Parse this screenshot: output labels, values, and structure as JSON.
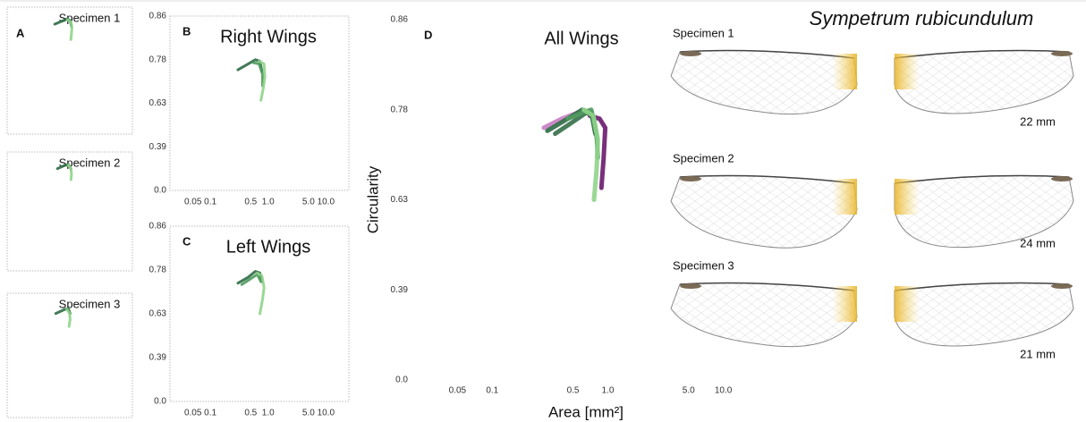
{
  "chart_data": [
    {
      "type": "line",
      "title": "Specimen 1",
      "panel": "A",
      "log_x": true,
      "frame": true,
      "xlim": [
        0.02,
        25
      ],
      "ylim": [
        0,
        0.86
      ],
      "series": [
        {
          "color": "#2e6b45",
          "x": [
            0.3,
            0.45,
            0.6,
            0.72,
            0.78
          ],
          "values": [
            0.745,
            0.765,
            0.78,
            0.77,
            0.73
          ]
        },
        {
          "color": "#8fd48a",
          "x": [
            0.62,
            0.75,
            0.8,
            0.78,
            0.75
          ],
          "values": [
            0.775,
            0.76,
            0.72,
            0.68,
            0.64
          ]
        }
      ]
    },
    {
      "type": "line",
      "title": "Specimen 2",
      "log_x": true,
      "frame": true,
      "xlim": [
        0.02,
        25
      ],
      "ylim": [
        0,
        0.86
      ],
      "series": [
        {
          "color": "#2e6b45",
          "x": [
            0.35,
            0.5,
            0.65,
            0.75
          ],
          "values": [
            0.74,
            0.76,
            0.77,
            0.74
          ]
        },
        {
          "color": "#8fd48a",
          "x": [
            0.65,
            0.75,
            0.78,
            0.76
          ],
          "values": [
            0.765,
            0.74,
            0.7,
            0.66
          ]
        }
      ]
    },
    {
      "type": "line",
      "title": "Specimen 3",
      "log_x": true,
      "frame": true,
      "xlim": [
        0.02,
        25
      ],
      "ylim": [
        0,
        0.86
      ],
      "series": [
        {
          "color": "#2e6b45",
          "x": [
            0.32,
            0.5,
            0.65,
            0.72
          ],
          "values": [
            0.72,
            0.745,
            0.755,
            0.72
          ]
        },
        {
          "color": "#8fd48a",
          "x": [
            0.6,
            0.7,
            0.72,
            0.68
          ],
          "values": [
            0.75,
            0.72,
            0.68,
            0.63
          ]
        }
      ]
    },
    {
      "type": "line",
      "title": "Right Wings",
      "panel": "B",
      "log_x": true,
      "frame": true,
      "xlim": [
        0.02,
        25
      ],
      "ylim": [
        0,
        0.86
      ],
      "xticks": [
        0.05,
        0.1,
        0.5,
        {
          "value": 1,
          "label": "1.0"
        },
        {
          "value": 5,
          "label": "5.0"
        },
        {
          "value": 10,
          "label": "10.0"
        }
      ],
      "yticks": [
        {
          "value": 0,
          "label": "0.0"
        },
        0.39,
        0.63,
        0.78,
        0.86
      ],
      "series": [
        {
          "color": "#2e6b45",
          "x": [
            0.3,
            0.45,
            0.6,
            0.72,
            0.78
          ],
          "values": [
            0.745,
            0.765,
            0.78,
            0.775,
            0.74
          ]
        },
        {
          "color": "#4f9a5e",
          "x": [
            0.55,
            0.7,
            0.8,
            0.8
          ],
          "values": [
            0.77,
            0.765,
            0.73,
            0.69
          ]
        },
        {
          "color": "#8fd48a",
          "x": [
            0.7,
            0.85,
            0.88,
            0.82,
            0.75
          ],
          "values": [
            0.775,
            0.765,
            0.72,
            0.68,
            0.64
          ]
        }
      ]
    },
    {
      "type": "line",
      "title": "Left Wings",
      "panel": "C",
      "log_x": true,
      "frame": true,
      "xlim": [
        0.02,
        25
      ],
      "ylim": [
        0,
        0.86
      ],
      "xticks": [
        0.05,
        0.1,
        0.5,
        {
          "value": 1,
          "label": "1.0"
        },
        {
          "value": 5,
          "label": "5.0"
        },
        {
          "value": 10,
          "label": "10.0"
        }
      ],
      "yticks": [
        {
          "value": 0,
          "label": "0.0"
        },
        0.39,
        0.63,
        0.78,
        0.86
      ],
      "series": [
        {
          "color": "#2e6b45",
          "x": [
            0.3,
            0.45,
            0.6,
            0.72,
            0.78
          ],
          "values": [
            0.735,
            0.755,
            0.775,
            0.77,
            0.74
          ]
        },
        {
          "color": "#4f9a5e",
          "x": [
            0.35,
            0.5,
            0.65,
            0.75
          ],
          "values": [
            0.73,
            0.75,
            0.765,
            0.74
          ]
        },
        {
          "color": "#8fd48a",
          "x": [
            0.65,
            0.78,
            0.85,
            0.8,
            0.72
          ],
          "values": [
            0.77,
            0.76,
            0.72,
            0.68,
            0.63
          ]
        }
      ]
    },
    {
      "type": "line",
      "title": "All Wings",
      "panel": "D",
      "log_x": true,
      "frame": false,
      "xlim": [
        0.02,
        25
      ],
      "ylim": [
        0,
        0.86
      ],
      "x_label": "Area [mm²]",
      "y_label": "Circularity",
      "xticks": [
        0.05,
        0.1,
        0.5,
        {
          "value": 1,
          "label": "1.0"
        },
        {
          "value": 5,
          "label": "5.0"
        },
        {
          "value": 10,
          "label": "10.0"
        }
      ],
      "yticks": [
        {
          "value": 0,
          "label": "0.0"
        },
        0.39,
        0.63,
        0.78,
        0.86
      ],
      "series": [
        {
          "color": "#c77dc3",
          "x": [
            0.28,
            0.4,
            0.55
          ],
          "values": [
            0.75,
            0.765,
            0.775
          ]
        },
        {
          "color": "#6a1a6e",
          "x": [
            0.7,
            0.85,
            0.95,
            0.92,
            0.88
          ],
          "values": [
            0.77,
            0.765,
            0.75,
            0.7,
            0.65
          ]
        },
        {
          "color": "#2e6b45",
          "x": [
            0.3,
            0.45,
            0.6,
            0.72,
            0.78
          ],
          "values": [
            0.745,
            0.765,
            0.78,
            0.775,
            0.74
          ]
        },
        {
          "color": "#356f4a",
          "x": [
            0.35,
            0.5,
            0.65,
            0.75,
            0.8
          ],
          "values": [
            0.74,
            0.76,
            0.775,
            0.77,
            0.735
          ]
        },
        {
          "color": "#4f9a5e",
          "x": [
            0.45,
            0.6,
            0.72,
            0.8,
            0.82
          ],
          "values": [
            0.765,
            0.775,
            0.78,
            0.74,
            0.7
          ]
        },
        {
          "color": "#8fd48a",
          "x": [
            0.62,
            0.75,
            0.82,
            0.8,
            0.76
          ],
          "values": [
            0.78,
            0.77,
            0.73,
            0.68,
            0.63
          ]
        }
      ]
    }
  ],
  "photos": {
    "title": "Sympetrum rubicundulum",
    "rows": [
      {
        "label": "Specimen 1",
        "scale": "22 mm"
      },
      {
        "label": "Specimen 2",
        "scale": "24 mm"
      },
      {
        "label": "Specimen 3",
        "scale": "21 mm"
      }
    ]
  }
}
